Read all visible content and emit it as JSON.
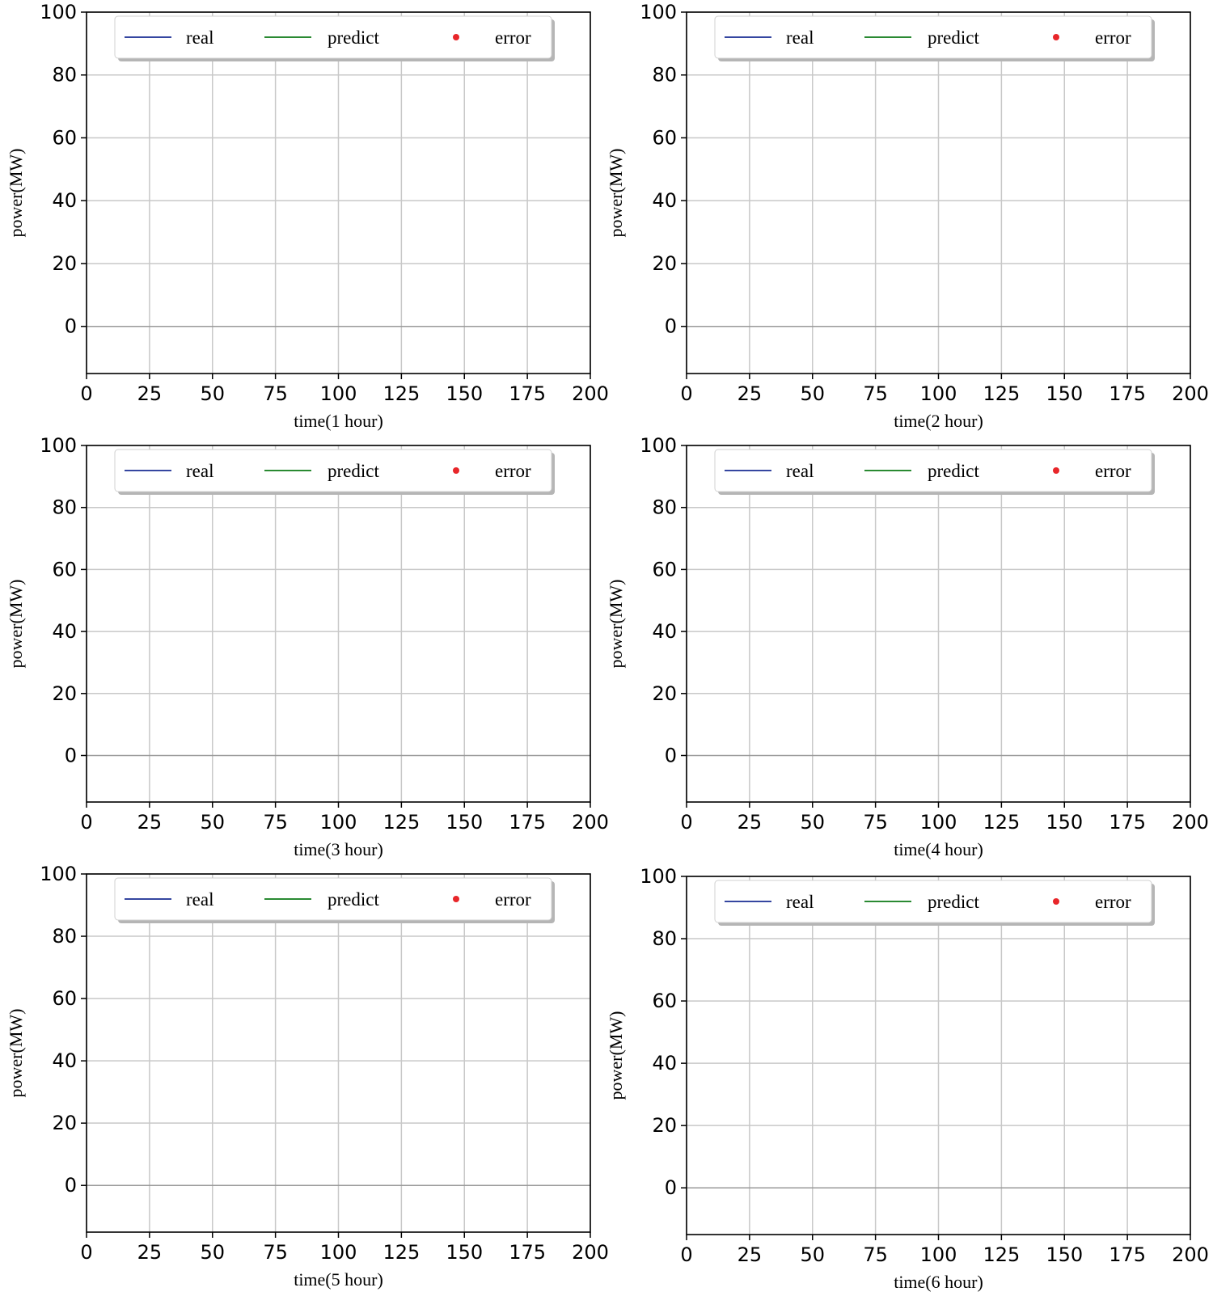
{
  "colors": {
    "real": "#3546a0",
    "predict": "#2a8a32",
    "error": "#e8262a",
    "grid": "#c8c8c8",
    "zero_line": "#9a9a9a",
    "axis": "#000000"
  },
  "legend_labels": {
    "real": "real",
    "predict": "predict",
    "error": "error"
  },
  "chart_data": [
    {
      "type": "line",
      "title": "",
      "xlabel": "time(1 hour)",
      "ylabel": "power(MW)",
      "xlim": [
        0,
        200
      ],
      "ylim": [
        -15,
        100
      ],
      "xticks": [
        0,
        25,
        50,
        75,
        100,
        125,
        150,
        175,
        200
      ],
      "yticks": [
        0,
        20,
        40,
        60,
        80,
        100
      ],
      "grid": true,
      "legend": "top-center",
      "series": [
        {
          "name": "real",
          "kind": "line",
          "x": [],
          "values": []
        },
        {
          "name": "predict",
          "kind": "line",
          "x": [],
          "values": []
        },
        {
          "name": "error",
          "kind": "scatter",
          "x": [],
          "values": []
        }
      ]
    },
    {
      "type": "line",
      "title": "",
      "xlabel": "time(2 hour)",
      "ylabel": "power(MW)",
      "xlim": [
        0,
        200
      ],
      "ylim": [
        -15,
        100
      ],
      "xticks": [
        0,
        25,
        50,
        75,
        100,
        125,
        150,
        175,
        200
      ],
      "yticks": [
        0,
        20,
        40,
        60,
        80,
        100
      ],
      "grid": true,
      "legend": "top-center",
      "series": [
        {
          "name": "real",
          "kind": "line",
          "x": [],
          "values": []
        },
        {
          "name": "predict",
          "kind": "line",
          "x": [],
          "values": []
        },
        {
          "name": "error",
          "kind": "scatter",
          "x": [],
          "values": []
        }
      ]
    },
    {
      "type": "line",
      "title": "",
      "xlabel": "time(3 hour)",
      "ylabel": "power(MW)",
      "xlim": [
        0,
        200
      ],
      "ylim": [
        -15,
        100
      ],
      "xticks": [
        0,
        25,
        50,
        75,
        100,
        125,
        150,
        175,
        200
      ],
      "yticks": [
        0,
        20,
        40,
        60,
        80,
        100
      ],
      "grid": true,
      "legend": "top-center",
      "series": [
        {
          "name": "real",
          "kind": "line",
          "x": [],
          "values": []
        },
        {
          "name": "predict",
          "kind": "line",
          "x": [],
          "values": []
        },
        {
          "name": "error",
          "kind": "scatter",
          "x": [],
          "values": []
        }
      ]
    },
    {
      "type": "line",
      "title": "",
      "xlabel": "time(4 hour)",
      "ylabel": "power(MW)",
      "xlim": [
        0,
        200
      ],
      "ylim": [
        -15,
        100
      ],
      "xticks": [
        0,
        25,
        50,
        75,
        100,
        125,
        150,
        175,
        200
      ],
      "yticks": [
        0,
        20,
        40,
        60,
        80,
        100
      ],
      "grid": true,
      "legend": "top-center",
      "series": [
        {
          "name": "real",
          "kind": "line",
          "x": [],
          "values": []
        },
        {
          "name": "predict",
          "kind": "line",
          "x": [],
          "values": []
        },
        {
          "name": "error",
          "kind": "scatter",
          "x": [],
          "values": []
        }
      ]
    },
    {
      "type": "line",
      "title": "",
      "xlabel": "time(5 hour)",
      "ylabel": "power(MW)",
      "xlim": [
        0,
        200
      ],
      "ylim": [
        -15,
        100
      ],
      "xticks": [
        0,
        25,
        50,
        75,
        100,
        125,
        150,
        175,
        200
      ],
      "yticks": [
        0,
        20,
        40,
        60,
        80,
        100
      ],
      "grid": true,
      "legend": "top-center",
      "series": [
        {
          "name": "real",
          "kind": "line",
          "x": [],
          "values": []
        },
        {
          "name": "predict",
          "kind": "line",
          "x": [],
          "values": []
        },
        {
          "name": "error",
          "kind": "scatter",
          "x": [],
          "values": []
        }
      ]
    },
    {
      "type": "line",
      "title": "",
      "xlabel": "time(6 hour)",
      "ylabel": "power(MW)",
      "xlim": [
        0,
        200
      ],
      "ylim": [
        -15,
        100
      ],
      "xticks": [
        0,
        25,
        50,
        75,
        100,
        125,
        150,
        175,
        200
      ],
      "yticks": [
        0,
        20,
        40,
        60,
        80,
        100
      ],
      "grid": true,
      "legend": "top-center",
      "series": [
        {
          "name": "real",
          "kind": "line",
          "x": [],
          "values": []
        },
        {
          "name": "predict",
          "kind": "line",
          "x": [],
          "values": []
        },
        {
          "name": "error",
          "kind": "scatter",
          "x": [],
          "values": []
        }
      ]
    }
  ]
}
